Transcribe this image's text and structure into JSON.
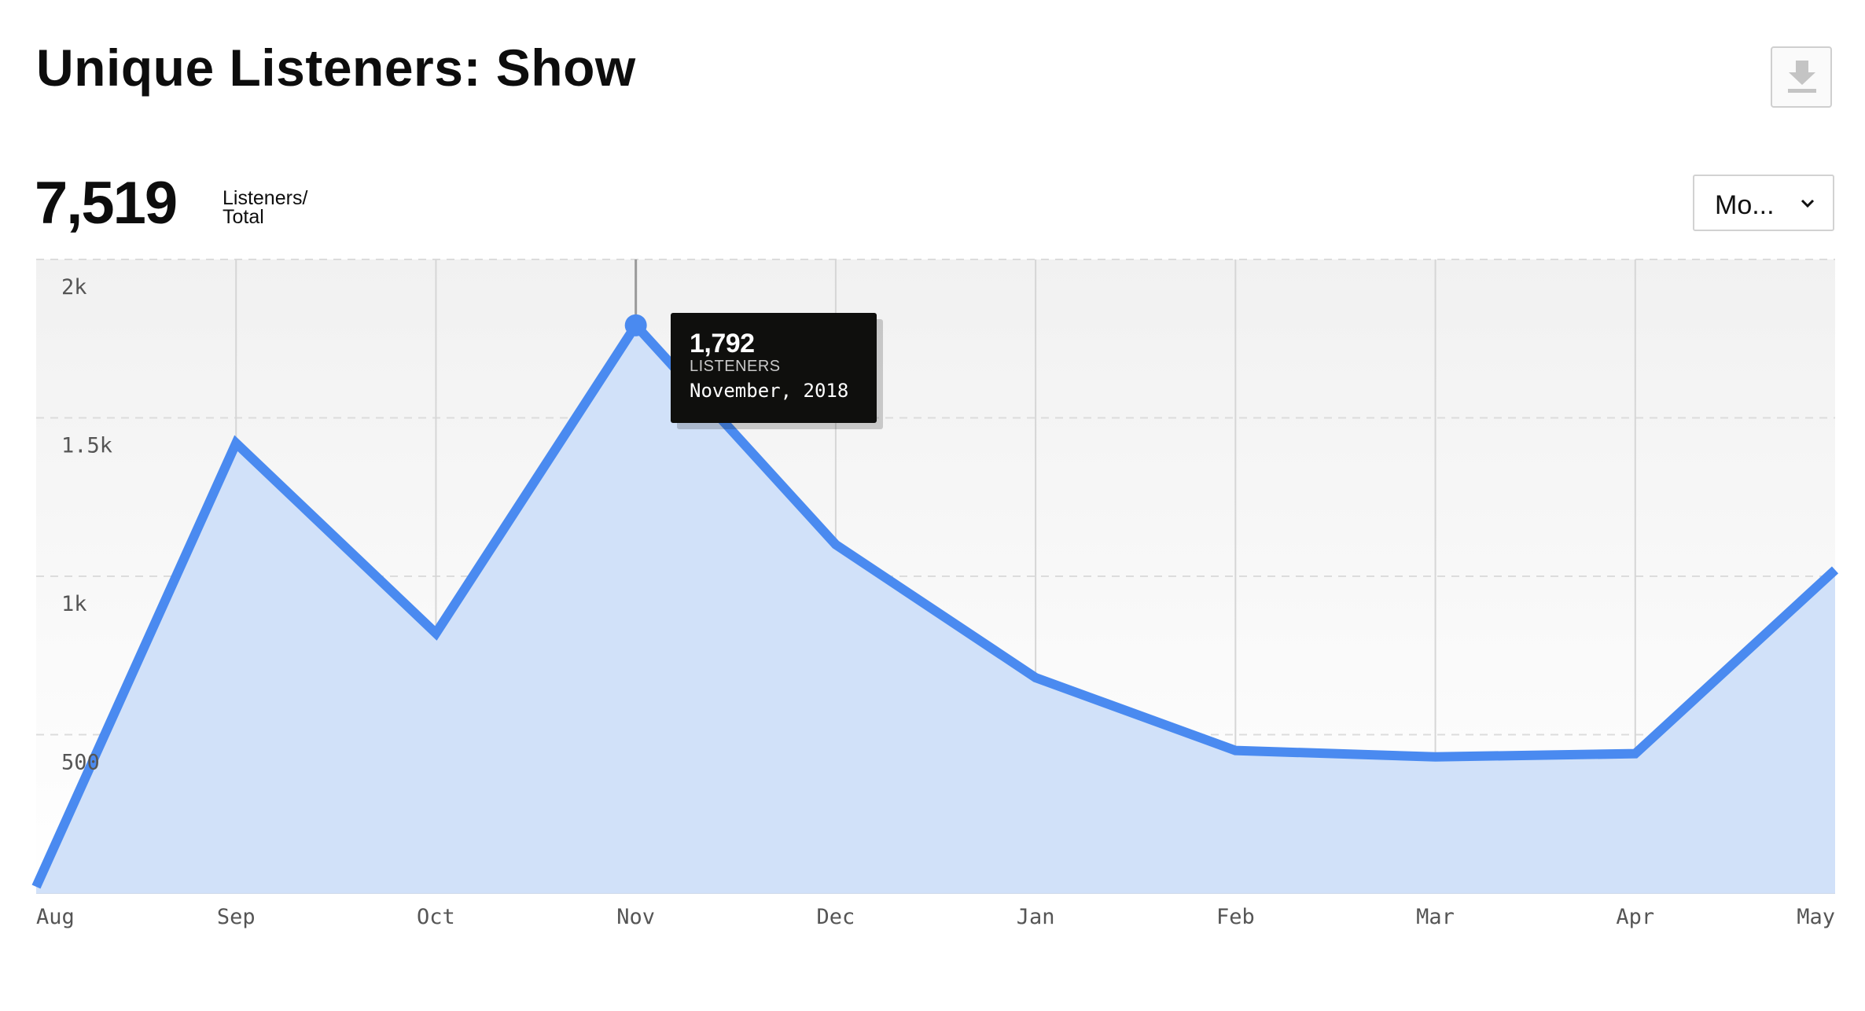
{
  "header": {
    "title": "Unique Listeners: Show"
  },
  "icons": {
    "download": "download-icon",
    "dropdown": "chevron-down-icon"
  },
  "summary": {
    "total_value": "7,519",
    "label_line1": "Listeners/",
    "label_line2": "Total"
  },
  "period_select": {
    "selected": "Mo..."
  },
  "tooltip": {
    "value": "1,792",
    "unit": "LISTENERS",
    "date": "November, 2018"
  },
  "colors": {
    "line": "#4a8af0",
    "area": "#d1e1f9",
    "tooltip_bg": "#0f0f0d"
  },
  "chart_data": {
    "type": "area",
    "x": [
      "Aug",
      "Sep",
      "Oct",
      "Nov",
      "Dec",
      "Jan",
      "Feb",
      "Mar",
      "Apr",
      "May"
    ],
    "series": [
      {
        "values": [
          20,
          1420,
          820,
          1792,
          1100,
          680,
          450,
          430,
          440,
          1020
        ]
      }
    ],
    "ylim": [
      0,
      2000
    ],
    "y_ticks": [
      {
        "value": 2000,
        "label": "2k"
      },
      {
        "value": 1500,
        "label": "1.5k"
      },
      {
        "value": 1000,
        "label": "1k"
      },
      {
        "value": 500,
        "label": "500"
      }
    ],
    "highlighted_index": 3,
    "grid": true,
    "legend": "none"
  }
}
